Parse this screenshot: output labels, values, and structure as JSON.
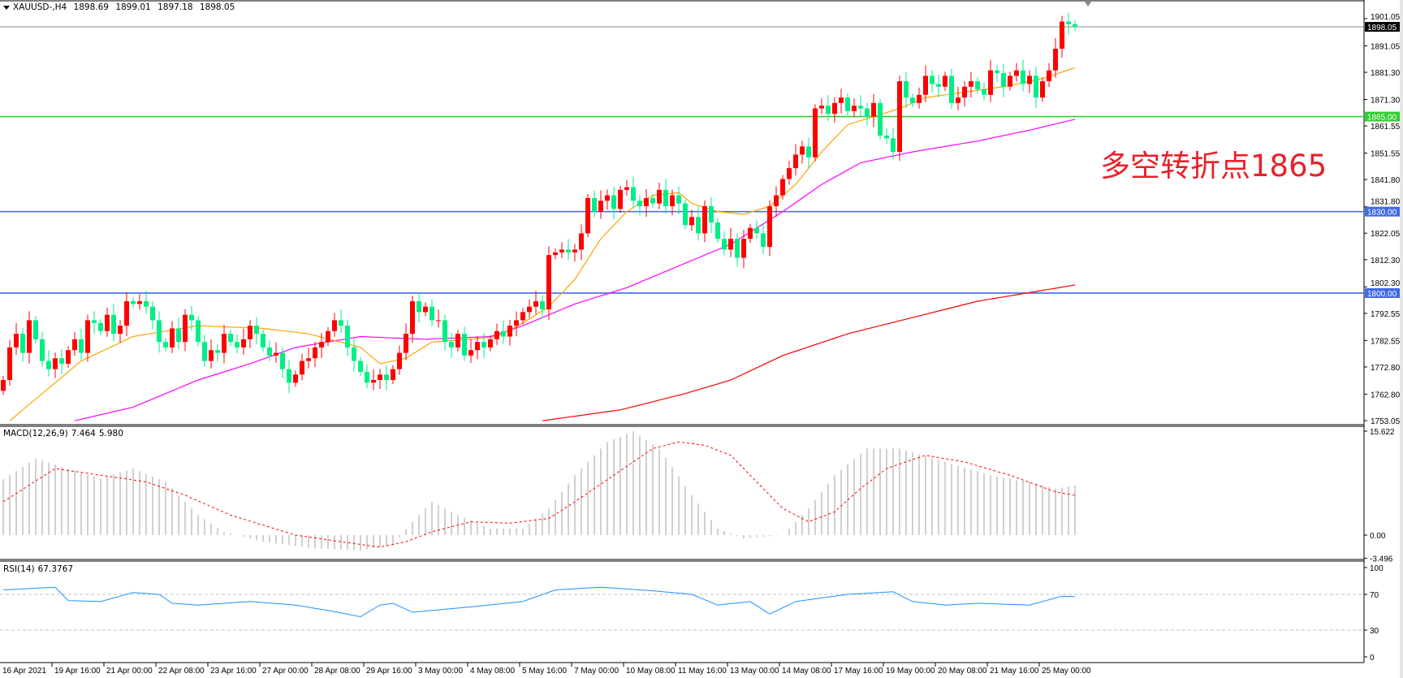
{
  "header": {
    "symbol": "XAUUSD-,H4",
    "open": "1898.69",
    "high": "1899.01",
    "low": "1897.18",
    "close": "1898.05"
  },
  "annotation": "多空转折点1865",
  "colors": {
    "up": "#ff0000",
    "down": "#00ee88",
    "ma_fast": "#ffa500",
    "ma_mid": "#ff00ff",
    "ma_slow": "#ff0000",
    "support_green": "#32cd32",
    "support_blue": "#4169e1",
    "price_line": "#808a90",
    "macd_hist": "#c0c0c0",
    "macd_signal": "#ff0000",
    "rsi": "#1e90ff"
  },
  "levels": [
    {
      "value": 1865.0,
      "label": "1865.00",
      "color": "#32cd32"
    },
    {
      "value": 1830.0,
      "label": "1830.00",
      "color": "#4169e1"
    },
    {
      "value": 1800.0,
      "label": "1800.00",
      "color": "#4169e1"
    }
  ],
  "current_price": {
    "value": 1898.05,
    "label": "1898.05"
  },
  "price_axis": [
    "1901.05",
    "1891.05",
    "1881.30",
    "1871.30",
    "1861.55",
    "1851.55",
    "1841.80",
    "1831.80",
    "1822.05",
    "1812.30",
    "1802.30",
    "1792.55",
    "1782.55",
    "1772.80",
    "1762.80",
    "1753.05"
  ],
  "time_axis": [
    "16 Apr 2021",
    "19 Apr 16:00",
    "21 Apr 00:00",
    "22 Apr 08:00",
    "23 Apr 16:00",
    "27 Apr 00:00",
    "28 Apr 08:00",
    "29 Apr 16:00",
    "3 May 00:00",
    "4 May 08:00",
    "5 May 16:00",
    "7 May 00:00",
    "10 May 08:00",
    "11 May 16:00",
    "13 May 00:00",
    "14 May 08:00",
    "17 May 16:00",
    "19 May 00:00",
    "20 May 08:00",
    "21 May 16:00",
    "25 May 00:00"
  ],
  "macd": {
    "label": "MACD(12,26,9)",
    "main": "7.464",
    "signal": "5.980",
    "axis": [
      "15.622",
      "0.00",
      "-3.496"
    ]
  },
  "rsi": {
    "label": "RSI(14)",
    "value": "67.3767",
    "axis": [
      "100",
      "70",
      "30",
      "0"
    ]
  },
  "chart_data": {
    "type": "candlestick",
    "ylim": [
      1753.05,
      1901.05
    ],
    "close": [
      1768,
      1780,
      1785,
      1778,
      1790,
      1783,
      1775,
      1772,
      1776,
      1774,
      1779,
      1783,
      1778,
      1790,
      1789,
      1786,
      1792,
      1785,
      1788,
      1797,
      1796,
      1797,
      1795,
      1790,
      1782,
      1780,
      1787,
      1782,
      1792,
      1790,
      1782,
      1775,
      1779,
      1778,
      1785,
      1782,
      1780,
      1783,
      1788,
      1785,
      1780,
      1777,
      1778,
      1772,
      1767,
      1770,
      1775,
      1776,
      1780,
      1782,
      1786,
      1790,
      1788,
      1780,
      1775,
      1771,
      1767,
      1768,
      1770,
      1768,
      1772,
      1778,
      1785,
      1797,
      1793,
      1795,
      1790,
      1790,
      1782,
      1780,
      1785,
      1777,
      1779,
      1782,
      1780,
      1783,
      1786,
      1784,
      1788,
      1790,
      1793,
      1795,
      1797,
      1794,
      1814,
      1815,
      1816,
      1815,
      1816,
      1822,
      1835,
      1830,
      1834,
      1836,
      1831,
      1838,
      1839,
      1834,
      1832,
      1835,
      1833,
      1838,
      1832,
      1836,
      1833,
      1825,
      1828,
      1822,
      1832,
      1826,
      1820,
      1816,
      1820,
      1813,
      1820,
      1824,
      1822,
      1817,
      1832,
      1836,
      1842,
      1846,
      1851,
      1854,
      1850,
      1868,
      1869,
      1866,
      1870,
      1872,
      1867,
      1869,
      1868,
      1865,
      1870,
      1858,
      1857,
      1852,
      1878,
      1872,
      1870,
      1873,
      1880,
      1877,
      1876,
      1880,
      1870,
      1872,
      1876,
      1878,
      1875,
      1873,
      1882,
      1881,
      1876,
      1880,
      1882,
      1877,
      1880,
      1872,
      1878,
      1882,
      1890,
      1900,
      1899,
      1898.05
    ],
    "ma_fast": [
      [
        1,
        1753
      ],
      [
        12,
        1775
      ],
      [
        20,
        1784
      ],
      [
        30,
        1788
      ],
      [
        40,
        1787
      ],
      [
        47,
        1785
      ],
      [
        55,
        1780
      ],
      [
        58,
        1774
      ],
      [
        62,
        1776
      ],
      [
        66,
        1782
      ],
      [
        72,
        1783
      ],
      [
        76,
        1784
      ],
      [
        80,
        1789
      ],
      [
        84,
        1795
      ],
      [
        88,
        1805
      ],
      [
        92,
        1820
      ],
      [
        96,
        1830
      ],
      [
        100,
        1836
      ],
      [
        104,
        1837
      ],
      [
        106,
        1833
      ],
      [
        110,
        1830
      ],
      [
        114,
        1829
      ],
      [
        118,
        1832
      ],
      [
        122,
        1840
      ],
      [
        126,
        1852
      ],
      [
        130,
        1862
      ],
      [
        134,
        1865
      ],
      [
        138,
        1868
      ],
      [
        142,
        1872
      ],
      [
        148,
        1874
      ],
      [
        154,
        1876
      ],
      [
        160,
        1879
      ],
      [
        165,
        1883
      ]
    ],
    "ma_mid": [
      [
        11,
        1753
      ],
      [
        20,
        1758
      ],
      [
        30,
        1768
      ],
      [
        38,
        1774
      ],
      [
        45,
        1780
      ],
      [
        55,
        1784
      ],
      [
        65,
        1783
      ],
      [
        75,
        1784
      ],
      [
        80,
        1788
      ],
      [
        88,
        1796
      ],
      [
        96,
        1802
      ],
      [
        104,
        1810
      ],
      [
        112,
        1818
      ],
      [
        120,
        1830
      ],
      [
        126,
        1840
      ],
      [
        132,
        1848
      ],
      [
        140,
        1852
      ],
      [
        150,
        1856
      ],
      [
        158,
        1860
      ],
      [
        165,
        1864
      ]
    ],
    "ma_slow": [
      [
        83,
        1753
      ],
      [
        95,
        1757
      ],
      [
        105,
        1763
      ],
      [
        112,
        1768
      ],
      [
        120,
        1777
      ],
      [
        130,
        1785
      ],
      [
        140,
        1791
      ],
      [
        150,
        1797
      ],
      [
        160,
        1801
      ],
      [
        165,
        1803
      ]
    ],
    "macd_hist": [
      [
        0,
        8.4
      ],
      [
        5,
        11.5
      ],
      [
        10,
        10
      ],
      [
        15,
        8.5
      ],
      [
        20,
        10
      ],
      [
        25,
        8
      ],
      [
        30,
        3
      ],
      [
        34,
        0.5
      ],
      [
        40,
        -1
      ],
      [
        48,
        -2
      ],
      [
        55,
        -2.3
      ],
      [
        60,
        -1.5
      ],
      [
        63,
        2
      ],
      [
        66,
        5
      ],
      [
        70,
        3
      ],
      [
        75,
        1
      ],
      [
        80,
        1
      ],
      [
        84,
        4
      ],
      [
        88,
        9
      ],
      [
        93,
        14
      ],
      [
        97,
        15.6
      ],
      [
        101,
        13
      ],
      [
        106,
        6
      ],
      [
        110,
        1
      ],
      [
        114,
        -0.5
      ],
      [
        120,
        0
      ],
      [
        124,
        4
      ],
      [
        128,
        9
      ],
      [
        133,
        13
      ],
      [
        138,
        13
      ],
      [
        145,
        11
      ],
      [
        152,
        9
      ],
      [
        158,
        8
      ],
      [
        162,
        7
      ],
      [
        165,
        7.464
      ]
    ],
    "macd_signal": [
      [
        0,
        5
      ],
      [
        8,
        10
      ],
      [
        15,
        9
      ],
      [
        22,
        8
      ],
      [
        28,
        6
      ],
      [
        35,
        3
      ],
      [
        45,
        0
      ],
      [
        52,
        -1
      ],
      [
        58,
        -1.8
      ],
      [
        62,
        -1
      ],
      [
        66,
        0.5
      ],
      [
        72,
        2
      ],
      [
        78,
        1.8
      ],
      [
        84,
        2.5
      ],
      [
        88,
        5
      ],
      [
        94,
        9
      ],
      [
        100,
        13
      ],
      [
        104,
        14
      ],
      [
        108,
        13.5
      ],
      [
        112,
        12
      ],
      [
        116,
        8
      ],
      [
        120,
        4
      ],
      [
        124,
        2
      ],
      [
        128,
        3.5
      ],
      [
        132,
        7
      ],
      [
        136,
        10
      ],
      [
        142,
        12
      ],
      [
        148,
        11
      ],
      [
        155,
        9
      ],
      [
        162,
        6.5
      ],
      [
        165,
        5.98
      ]
    ],
    "rsi_series": [
      [
        0,
        75
      ],
      [
        8,
        78
      ],
      [
        10,
        63
      ],
      [
        15,
        62
      ],
      [
        20,
        72
      ],
      [
        24,
        70
      ],
      [
        26,
        60
      ],
      [
        30,
        58
      ],
      [
        38,
        62
      ],
      [
        45,
        58
      ],
      [
        50,
        52
      ],
      [
        55,
        45
      ],
      [
        58,
        58
      ],
      [
        60,
        60
      ],
      [
        63,
        50
      ],
      [
        66,
        52
      ],
      [
        72,
        56
      ],
      [
        80,
        62
      ],
      [
        85,
        75
      ],
      [
        92,
        78
      ],
      [
        100,
        74
      ],
      [
        106,
        70
      ],
      [
        110,
        58
      ],
      [
        115,
        62
      ],
      [
        118,
        48
      ],
      [
        122,
        62
      ],
      [
        130,
        70
      ],
      [
        137,
        73
      ],
      [
        140,
        62
      ],
      [
        145,
        58
      ],
      [
        150,
        60
      ],
      [
        158,
        58
      ],
      [
        163,
        68
      ],
      [
        165,
        67.38
      ]
    ],
    "rsi_levels": [
      70,
      30
    ],
    "macd_ylim": [
      -3.496,
      15.622
    ],
    "rsi_ylim": [
      0,
      100
    ]
  }
}
